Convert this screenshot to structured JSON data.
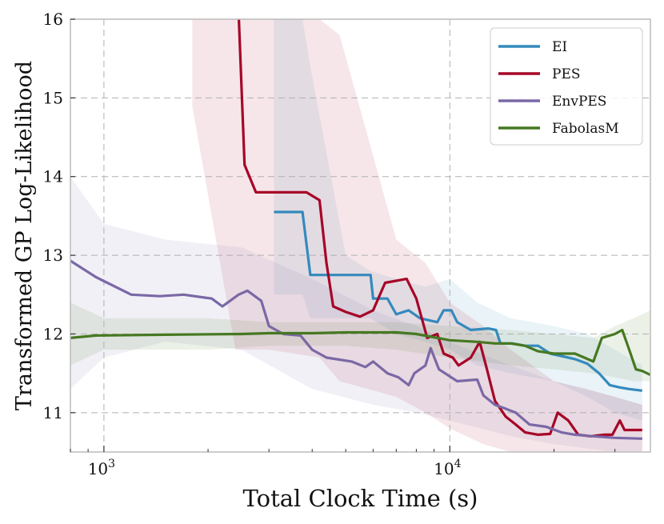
{
  "chart_data": {
    "type": "line",
    "xscale": "log",
    "xlim": [
      800,
      38000
    ],
    "ylim": [
      10.5,
      16
    ],
    "xlabel": "Total Clock Time (s)",
    "ylabel": "Transformed GP Log-Likelihood",
    "x_ticks": [
      {
        "value": 1000,
        "base": "10",
        "exp": "3"
      },
      {
        "value": 10000,
        "base": "10",
        "exp": "4"
      }
    ],
    "y_ticks": [
      {
        "value": 11,
        "label": "11"
      },
      {
        "value": 12,
        "label": "12"
      },
      {
        "value": 13,
        "label": "13"
      },
      {
        "value": 14,
        "label": "14"
      },
      {
        "value": 15,
        "label": "15"
      },
      {
        "value": 16,
        "label": "16"
      }
    ],
    "grid": true,
    "legend_position": "top-right",
    "series": [
      {
        "name": "EI",
        "color": "#348ABD",
        "points": [
          [
            3100,
            13.55
          ],
          [
            3750,
            13.55
          ],
          [
            3950,
            12.75
          ],
          [
            5900,
            12.75
          ],
          [
            6000,
            12.45
          ],
          [
            6600,
            12.45
          ],
          [
            7000,
            12.25
          ],
          [
            7600,
            12.3
          ],
          [
            8200,
            12.2
          ],
          [
            9200,
            12.15
          ],
          [
            9600,
            12.3
          ],
          [
            10100,
            12.3
          ],
          [
            10500,
            12.15
          ],
          [
            11500,
            12.05
          ],
          [
            12900,
            12.07
          ],
          [
            13600,
            12.05
          ],
          [
            14000,
            11.88
          ],
          [
            15200,
            11.88
          ],
          [
            16500,
            11.85
          ],
          [
            18000,
            11.85
          ],
          [
            19500,
            11.75
          ],
          [
            21000,
            11.72
          ],
          [
            23000,
            11.68
          ],
          [
            25000,
            11.62
          ],
          [
            27000,
            11.5
          ],
          [
            29000,
            11.35
          ],
          [
            31000,
            11.32
          ],
          [
            33000,
            11.3
          ],
          [
            36000,
            11.28
          ]
        ],
        "band": [
          [
            3100,
            12.5,
            16.1
          ],
          [
            3750,
            12.5,
            16.1
          ],
          [
            3950,
            12.2,
            15.4
          ],
          [
            5000,
            12.2,
            13.0
          ],
          [
            5900,
            12.2,
            12.8
          ],
          [
            7000,
            12.0,
            12.7
          ],
          [
            8500,
            11.9,
            12.6
          ],
          [
            10000,
            11.8,
            12.7
          ],
          [
            12000,
            11.6,
            12.4
          ],
          [
            15000,
            11.5,
            12.2
          ],
          [
            20000,
            11.4,
            12.1
          ],
          [
            25000,
            11.2,
            12.0
          ],
          [
            30000,
            11.0,
            11.8
          ],
          [
            36000,
            10.9,
            11.6
          ]
        ]
      },
      {
        "name": "PES",
        "color": "#A60628",
        "points": [
          [
            2450,
            16.1
          ],
          [
            2550,
            14.15
          ],
          [
            2750,
            13.8
          ],
          [
            3850,
            13.8
          ],
          [
            4200,
            13.7
          ],
          [
            4400,
            12.9
          ],
          [
            4600,
            12.35
          ],
          [
            5000,
            12.28
          ],
          [
            5500,
            12.22
          ],
          [
            6000,
            12.3
          ],
          [
            6500,
            12.65
          ],
          [
            7500,
            12.7
          ],
          [
            8000,
            12.45
          ],
          [
            8600,
            11.95
          ],
          [
            9200,
            12.0
          ],
          [
            9600,
            11.75
          ],
          [
            10200,
            11.7
          ],
          [
            10600,
            11.6
          ],
          [
            11500,
            11.7
          ],
          [
            12200,
            11.9
          ],
          [
            12800,
            11.55
          ],
          [
            13500,
            11.15
          ],
          [
            14500,
            10.95
          ],
          [
            15500,
            10.85
          ],
          [
            16500,
            10.75
          ],
          [
            18000,
            10.72
          ],
          [
            19500,
            10.73
          ],
          [
            20500,
            11.0
          ],
          [
            22000,
            10.9
          ],
          [
            23500,
            10.72
          ],
          [
            25500,
            10.7
          ],
          [
            28000,
            10.72
          ],
          [
            29500,
            10.72
          ],
          [
            31000,
            10.9
          ],
          [
            32000,
            10.78
          ],
          [
            36000,
            10.78
          ]
        ],
        "band": [
          [
            1800,
            14.9,
            16.1
          ],
          [
            2400,
            11.8,
            16.1
          ],
          [
            3000,
            11.8,
            16.1
          ],
          [
            4200,
            11.7,
            16.0
          ],
          [
            4800,
            11.4,
            15.8
          ],
          [
            5800,
            11.3,
            14.5
          ],
          [
            7000,
            11.2,
            13.2
          ],
          [
            8500,
            11.0,
            12.9
          ],
          [
            10000,
            10.8,
            12.4
          ],
          [
            12500,
            10.6,
            12.1
          ],
          [
            15000,
            10.5,
            11.8
          ],
          [
            20000,
            10.5,
            11.4
          ],
          [
            25000,
            10.5,
            11.3
          ],
          [
            30000,
            10.5,
            11.2
          ],
          [
            36000,
            10.5,
            11.1
          ]
        ]
      },
      {
        "name": "EnvPES",
        "color": "#7A68A6",
        "points": [
          [
            800,
            12.93
          ],
          [
            950,
            12.72
          ],
          [
            1200,
            12.5
          ],
          [
            1450,
            12.48
          ],
          [
            1700,
            12.5
          ],
          [
            2050,
            12.45
          ],
          [
            2200,
            12.35
          ],
          [
            2450,
            12.5
          ],
          [
            2600,
            12.55
          ],
          [
            2850,
            12.42
          ],
          [
            3000,
            12.1
          ],
          [
            3300,
            12.0
          ],
          [
            3700,
            11.98
          ],
          [
            4000,
            11.8
          ],
          [
            4400,
            11.7
          ],
          [
            5200,
            11.65
          ],
          [
            5700,
            11.58
          ],
          [
            6000,
            11.65
          ],
          [
            6600,
            11.5
          ],
          [
            7100,
            11.45
          ],
          [
            7600,
            11.35
          ],
          [
            7900,
            11.5
          ],
          [
            8500,
            11.6
          ],
          [
            8800,
            11.82
          ],
          [
            9300,
            11.55
          ],
          [
            10500,
            11.4
          ],
          [
            12000,
            11.42
          ],
          [
            12500,
            11.22
          ],
          [
            13500,
            11.1
          ],
          [
            14500,
            11.05
          ],
          [
            15500,
            11.0
          ],
          [
            17000,
            10.85
          ],
          [
            19000,
            10.82
          ],
          [
            21000,
            10.75
          ],
          [
            23000,
            10.72
          ],
          [
            26000,
            10.7
          ],
          [
            30000,
            10.68
          ],
          [
            36000,
            10.67
          ]
        ],
        "band": [
          [
            800,
            11.3,
            14.0
          ],
          [
            1000,
            11.7,
            13.4
          ],
          [
            1500,
            11.9,
            13.2
          ],
          [
            2500,
            11.8,
            13.1
          ],
          [
            4000,
            11.3,
            12.7
          ],
          [
            6000,
            11.1,
            12.3
          ],
          [
            8000,
            11.0,
            12.1
          ],
          [
            10000,
            10.9,
            11.9
          ],
          [
            15000,
            10.7,
            11.6
          ],
          [
            20000,
            10.6,
            11.4
          ],
          [
            30000,
            10.5,
            11.2
          ],
          [
            36000,
            10.5,
            11.1
          ]
        ]
      },
      {
        "name": "FabolasM",
        "color": "#467821",
        "points": [
          [
            800,
            11.95
          ],
          [
            950,
            11.98
          ],
          [
            1500,
            11.99
          ],
          [
            2500,
            12.0
          ],
          [
            3000,
            12.01
          ],
          [
            4000,
            12.01
          ],
          [
            5000,
            12.02
          ],
          [
            6200,
            12.02
          ],
          [
            7000,
            12.02
          ],
          [
            8000,
            12.0
          ],
          [
            10000,
            11.92
          ],
          [
            12000,
            11.9
          ],
          [
            13500,
            11.88
          ],
          [
            15000,
            11.88
          ],
          [
            16500,
            11.85
          ],
          [
            18000,
            11.78
          ],
          [
            20000,
            11.75
          ],
          [
            23000,
            11.75
          ],
          [
            26000,
            11.65
          ],
          [
            27500,
            11.95
          ],
          [
            30000,
            12.0
          ],
          [
            31500,
            12.05
          ],
          [
            33000,
            11.8
          ],
          [
            34500,
            11.55
          ],
          [
            36000,
            11.53
          ],
          [
            38000,
            11.48
          ]
        ],
        "band": [
          [
            800,
            11.6,
            12.4
          ],
          [
            1000,
            11.8,
            12.2
          ],
          [
            2000,
            11.8,
            12.2
          ],
          [
            3000,
            11.85,
            12.15
          ],
          [
            5000,
            11.85,
            12.15
          ],
          [
            7000,
            11.8,
            12.15
          ],
          [
            10000,
            11.7,
            12.1
          ],
          [
            15000,
            11.6,
            12.05
          ],
          [
            20000,
            11.55,
            12.0
          ],
          [
            26000,
            11.5,
            11.95
          ],
          [
            30000,
            11.45,
            12.1
          ],
          [
            34000,
            11.4,
            12.2
          ],
          [
            38000,
            11.4,
            12.3
          ]
        ]
      }
    ]
  }
}
